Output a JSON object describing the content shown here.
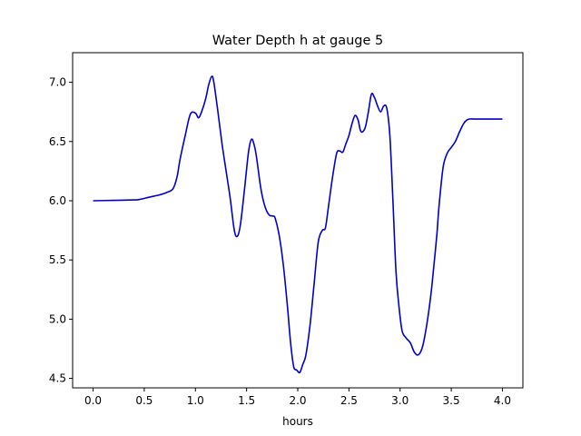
{
  "chart_data": {
    "type": "line",
    "title": "Water Depth h at gauge 5",
    "xlabel": "hours",
    "ylabel": "",
    "xlim": [
      -0.2,
      4.2
    ],
    "ylim": [
      4.42,
      7.25
    ],
    "xticks": [
      "0.0",
      "0.5",
      "1.0",
      "1.5",
      "2.0",
      "2.5",
      "3.0",
      "3.5",
      "4.0"
    ],
    "yticks": [
      "4.5",
      "5.0",
      "5.5",
      "6.0",
      "6.5",
      "7.0"
    ],
    "grid": false,
    "line_color": "#0000cc",
    "series": [
      {
        "name": "",
        "x": [
          0.0,
          0.2,
          0.4,
          0.45,
          0.55,
          0.65,
          0.72,
          0.78,
          0.82,
          0.85,
          0.9,
          0.95,
          1.0,
          1.03,
          1.06,
          1.1,
          1.13,
          1.16,
          1.18,
          1.22,
          1.26,
          1.3,
          1.34,
          1.38,
          1.41,
          1.44,
          1.48,
          1.52,
          1.55,
          1.58,
          1.6,
          1.64,
          1.68,
          1.72,
          1.76,
          1.78,
          1.82,
          1.86,
          1.9,
          1.93,
          1.96,
          1.99,
          2.02,
          2.05,
          2.08,
          2.12,
          2.16,
          2.2,
          2.24,
          2.27,
          2.3,
          2.34,
          2.38,
          2.41,
          2.44,
          2.47,
          2.5,
          2.53,
          2.56,
          2.59,
          2.61,
          2.63,
          2.66,
          2.69,
          2.72,
          2.75,
          2.78,
          2.81,
          2.84,
          2.87,
          2.9,
          2.93,
          2.96,
          2.99,
          3.02,
          3.06,
          3.1,
          3.14,
          3.18,
          3.22,
          3.26,
          3.3,
          3.33,
          3.36,
          3.38,
          3.42,
          3.46,
          3.5,
          3.54,
          3.58,
          3.62,
          3.65,
          3.68,
          3.72,
          3.76,
          3.8,
          3.84,
          3.88,
          3.92,
          3.96,
          4.0
        ],
        "y": [
          6.0,
          6.003,
          6.007,
          6.01,
          6.03,
          6.05,
          6.07,
          6.1,
          6.2,
          6.35,
          6.55,
          6.73,
          6.74,
          6.7,
          6.75,
          6.86,
          6.98,
          7.05,
          7.0,
          6.75,
          6.48,
          6.25,
          6.02,
          5.75,
          5.7,
          5.8,
          6.1,
          6.42,
          6.52,
          6.45,
          6.35,
          6.1,
          5.95,
          5.88,
          5.87,
          5.85,
          5.7,
          5.45,
          5.1,
          4.8,
          4.6,
          4.57,
          4.55,
          4.62,
          4.7,
          4.95,
          5.3,
          5.65,
          5.75,
          5.77,
          5.95,
          6.2,
          6.4,
          6.42,
          6.41,
          6.48,
          6.55,
          6.65,
          6.72,
          6.68,
          6.6,
          6.58,
          6.62,
          6.75,
          6.9,
          6.87,
          6.8,
          6.75,
          6.8,
          6.78,
          6.55,
          6.0,
          5.4,
          5.1,
          4.9,
          4.84,
          4.8,
          4.72,
          4.7,
          4.77,
          4.95,
          5.2,
          5.45,
          5.72,
          5.95,
          6.28,
          6.4,
          6.45,
          6.5,
          6.58,
          6.65,
          6.68,
          6.69,
          6.69,
          6.69,
          6.69,
          6.69,
          6.69,
          6.69,
          6.69,
          6.69
        ]
      }
    ]
  }
}
